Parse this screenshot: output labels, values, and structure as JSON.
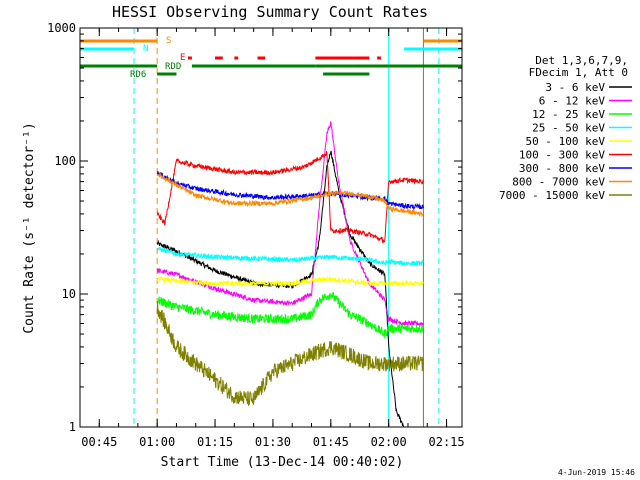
{
  "chart_data": {
    "type": "line",
    "title": "HESSI Observing Summary Count Rates",
    "xlabel": "Start Time (13-Dec-14 00:40:02)",
    "ylabel": "Count Rate (s⁻¹ detector⁻¹)",
    "y_scale": "log",
    "ylim": [
      1,
      1000
    ],
    "xlim": [
      "00:40",
      "02:19"
    ],
    "x_ticks": [
      "00:45",
      "01:00",
      "01:15",
      "01:30",
      "01:45",
      "02:00",
      "02:15"
    ],
    "y_ticks": [
      "1",
      "10",
      "100",
      "1000"
    ],
    "footer": "4-Jun-2019 15:46",
    "legend_header": [
      "Det 1,3,6,7,9,",
      "FDecim 1, Att 0"
    ],
    "legend_placement": "right",
    "series": [
      {
        "name": "3 - 6 keV",
        "color": "#000000",
        "points": [
          [
            "01:00",
            24
          ],
          [
            "01:05",
            21
          ],
          [
            "01:15",
            15
          ],
          [
            "01:25",
            12
          ],
          [
            "01:35",
            11.5
          ],
          [
            "01:40",
            14
          ],
          [
            "01:42",
            25
          ],
          [
            "01:44",
            90
          ],
          [
            "01:45",
            120
          ],
          [
            "01:47",
            60
          ],
          [
            "01:50",
            28
          ],
          [
            "01:55",
            17
          ],
          [
            "01:59",
            14
          ],
          [
            "02:00",
            4
          ],
          [
            "02:02",
            1.3
          ],
          [
            "02:04",
            1
          ]
        ]
      },
      {
        "name": "6 - 12 keV",
        "color": "#ff00ff",
        "points": [
          [
            "01:00",
            15
          ],
          [
            "01:05",
            14
          ],
          [
            "01:15",
            11
          ],
          [
            "01:25",
            9
          ],
          [
            "01:35",
            8.5
          ],
          [
            "01:40",
            10
          ],
          [
            "01:42",
            45
          ],
          [
            "01:44",
            160
          ],
          [
            "01:45",
            195
          ],
          [
            "01:47",
            70
          ],
          [
            "01:50",
            25
          ],
          [
            "01:55",
            12
          ],
          [
            "01:59",
            9
          ],
          [
            "02:00",
            6.5
          ],
          [
            "02:04",
            6
          ],
          [
            "02:09",
            6
          ]
        ]
      },
      {
        "name": "12 - 25 keV",
        "color": "#00ff00",
        "points": [
          [
            "01:00",
            9
          ],
          [
            "01:05",
            8
          ],
          [
            "01:15",
            7
          ],
          [
            "01:25",
            6.5
          ],
          [
            "01:35",
            6.5
          ],
          [
            "01:40",
            7
          ],
          [
            "01:42",
            9
          ],
          [
            "01:45",
            10
          ],
          [
            "01:50",
            7
          ],
          [
            "01:55",
            6
          ],
          [
            "01:59",
            5
          ],
          [
            "02:00",
            5.5
          ],
          [
            "02:04",
            5.5
          ],
          [
            "02:09",
            5.5
          ]
        ]
      },
      {
        "name": "25 - 50 keV",
        "color": "#00ffff",
        "points": [
          [
            "01:00",
            22
          ],
          [
            "01:05",
            20
          ],
          [
            "01:15",
            19
          ],
          [
            "01:25",
            18.5
          ],
          [
            "01:35",
            18
          ],
          [
            "01:40",
            18.5
          ],
          [
            "01:45",
            19
          ],
          [
            "01:50",
            18.5
          ],
          [
            "01:55",
            18
          ],
          [
            "01:59",
            17
          ],
          [
            "02:00",
            17.5
          ],
          [
            "02:04",
            17
          ],
          [
            "02:09",
            17
          ]
        ]
      },
      {
        "name": "50 - 100 keV",
        "color": "#ffff00",
        "points": [
          [
            "01:00",
            13
          ],
          [
            "01:05",
            12.5
          ],
          [
            "01:15",
            12
          ],
          [
            "01:25",
            12
          ],
          [
            "01:35",
            12
          ],
          [
            "01:40",
            12.5
          ],
          [
            "01:44",
            13
          ],
          [
            "01:50",
            12.5
          ],
          [
            "01:55",
            12
          ],
          [
            "01:59",
            12
          ],
          [
            "02:00",
            12
          ],
          [
            "02:09",
            12
          ]
        ]
      },
      {
        "name": "100 - 300 keV",
        "color": "#ff0000",
        "points": [
          [
            "01:00",
            40
          ],
          [
            "01:02",
            34
          ],
          [
            "01:05",
            100
          ],
          [
            "01:10",
            92
          ],
          [
            "01:20",
            82
          ],
          [
            "01:30",
            82
          ],
          [
            "01:38",
            90
          ],
          [
            "01:42",
            105
          ],
          [
            "01:44",
            115
          ],
          [
            "01:45",
            30
          ],
          [
            "01:50",
            30
          ],
          [
            "01:55",
            28
          ],
          [
            "01:59",
            25
          ],
          [
            "02:00",
            70
          ],
          [
            "02:04",
            72
          ],
          [
            "02:09",
            70
          ]
        ]
      },
      {
        "name": "300 - 800 keV",
        "color": "#0000ff",
        "points": [
          [
            "01:00",
            82
          ],
          [
            "01:05",
            68
          ],
          [
            "01:10",
            62
          ],
          [
            "01:20",
            56
          ],
          [
            "01:30",
            53
          ],
          [
            "01:40",
            55
          ],
          [
            "01:45",
            57
          ],
          [
            "01:50",
            55
          ],
          [
            "01:55",
            53
          ],
          [
            "01:59",
            52
          ],
          [
            "02:00",
            48
          ],
          [
            "02:04",
            46
          ],
          [
            "02:09",
            45
          ]
        ]
      },
      {
        "name": "800 - 7000 keV",
        "color": "#ff8800",
        "points": [
          [
            "01:00",
            80
          ],
          [
            "01:05",
            66
          ],
          [
            "01:10",
            55
          ],
          [
            "01:20",
            48
          ],
          [
            "01:30",
            48
          ],
          [
            "01:40",
            53
          ],
          [
            "01:45",
            57
          ],
          [
            "01:50",
            57
          ],
          [
            "01:55",
            54
          ],
          [
            "01:59",
            50
          ],
          [
            "02:00",
            44
          ],
          [
            "02:04",
            42
          ],
          [
            "02:09",
            40
          ]
        ]
      },
      {
        "name": "7000 - 15000 keV",
        "color": "#808000",
        "points": [
          [
            "01:00",
            8
          ],
          [
            "01:05",
            4
          ],
          [
            "01:10",
            3
          ],
          [
            "01:20",
            1.7
          ],
          [
            "01:25",
            1.6
          ],
          [
            "01:30",
            2.6
          ],
          [
            "01:35",
            3
          ],
          [
            "01:40",
            3.5
          ],
          [
            "01:45",
            4
          ],
          [
            "01:50",
            3.5
          ],
          [
            "01:55",
            3
          ],
          [
            "01:59",
            3
          ],
          [
            "02:00",
            3
          ],
          [
            "02:04",
            3
          ],
          [
            "02:09",
            3
          ]
        ]
      }
    ],
    "flag_bars": [
      {
        "label": "S",
        "color": "#ff8800",
        "segments": [
          [
            "00:40",
            "01:00"
          ],
          [
            "02:09",
            "02:19"
          ]
        ]
      },
      {
        "label": "N",
        "color": "#00ffff",
        "segments": [
          [
            "00:40",
            "00:54"
          ],
          [
            "02:04",
            "02:19"
          ]
        ]
      },
      {
        "label": "E",
        "color": "#ff0000",
        "segments": [
          [
            "01:08",
            "01:09"
          ],
          [
            "01:15",
            "01:17"
          ],
          [
            "01:20",
            "01:21"
          ],
          [
            "01:26",
            "01:28"
          ],
          [
            "01:41",
            "01:51"
          ],
          [
            "01:51",
            "01:55"
          ],
          [
            "01:57",
            "01:58"
          ]
        ]
      },
      {
        "label": "RDD",
        "color": "#008000",
        "segments": [
          [
            "00:40",
            "01:00"
          ],
          [
            "01:09",
            "01:41"
          ],
          [
            "01:41",
            "01:51"
          ],
          [
            "01:51",
            "01:58"
          ],
          [
            "01:58",
            "02:19"
          ]
        ]
      },
      {
        "label": "RD6",
        "color": "#008000",
        "segments": [
          [
            "01:00",
            "01:05"
          ],
          [
            "01:43",
            "01:55"
          ]
        ]
      }
    ],
    "vertical_markers": [
      {
        "time": "00:40",
        "color": "#00ffff",
        "style": "solid"
      },
      {
        "time": "00:54",
        "color": "#00ffff",
        "style": "dashed"
      },
      {
        "time": "01:00",
        "color": "#ff8800",
        "style": "dashed"
      },
      {
        "time": "02:00",
        "color": "#00ffff",
        "style": "solid"
      },
      {
        "time": "02:09",
        "color": "#808000",
        "style": "solid"
      },
      {
        "time": "02:13",
        "color": "#00ffff",
        "style": "dashed"
      }
    ]
  }
}
